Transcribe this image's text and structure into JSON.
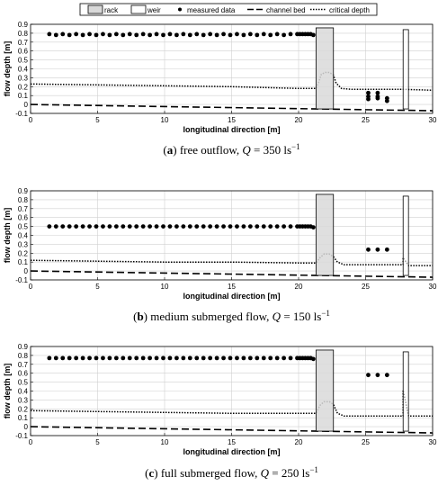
{
  "legend": {
    "rack": "rack",
    "weir": "weir",
    "measured": "measured data",
    "bed": "channel bed",
    "critical": "critical depth"
  },
  "chart_data": [
    {
      "type": "line",
      "caption": {
        "letter": "a",
        "text": "free outflow,",
        "q_symbol": "Q",
        "q_value": "350",
        "unit_base": "ls",
        "unit_exp": "−1"
      },
      "xlabel": "longitudinal direction [m]",
      "ylabel": "flow depth [m]",
      "xlim": [
        0,
        30
      ],
      "ylim": [
        -0.1,
        0.9
      ],
      "xticks": [
        0,
        5,
        10,
        15,
        20,
        25,
        30
      ],
      "yticks": [
        -0.1,
        0,
        0.1,
        0.2,
        0.3,
        0.4,
        0.5,
        0.6,
        0.7,
        0.8,
        0.9
      ],
      "grid": true,
      "rack": {
        "x0": 21.3,
        "x1": 22.6,
        "y0": -0.05,
        "y1": 0.86
      },
      "weir": {
        "x0": 27.8,
        "x1": 28.2,
        "y0": -0.05,
        "y1": 0.84
      },
      "measured": {
        "x": [
          1.4,
          1.9,
          2.4,
          2.9,
          3.4,
          3.9,
          4.4,
          4.9,
          5.4,
          5.9,
          6.4,
          6.9,
          7.4,
          7.9,
          8.4,
          8.9,
          9.4,
          9.9,
          10.4,
          10.9,
          11.4,
          11.9,
          12.4,
          12.9,
          13.4,
          13.9,
          14.4,
          14.9,
          15.4,
          15.9,
          16.4,
          16.9,
          17.4,
          17.9,
          18.4,
          18.9,
          19.4,
          19.9,
          20.1,
          20.3,
          20.5,
          20.7,
          20.9,
          21.1,
          25.2,
          25.2,
          25.2,
          25.9,
          25.9,
          25.9,
          26.6,
          26.6
        ],
        "y": [
          0.79,
          0.78,
          0.79,
          0.78,
          0.79,
          0.78,
          0.79,
          0.78,
          0.79,
          0.78,
          0.79,
          0.78,
          0.79,
          0.78,
          0.79,
          0.78,
          0.79,
          0.78,
          0.79,
          0.78,
          0.79,
          0.78,
          0.79,
          0.78,
          0.79,
          0.78,
          0.79,
          0.78,
          0.79,
          0.78,
          0.79,
          0.78,
          0.79,
          0.78,
          0.79,
          0.78,
          0.79,
          0.79,
          0.79,
          0.79,
          0.79,
          0.79,
          0.79,
          0.78,
          0.13,
          0.09,
          0.06,
          0.13,
          0.09,
          0.07,
          0.07,
          0.04
        ]
      },
      "channel_bed": {
        "x": [
          0,
          30
        ],
        "y": [
          0.0,
          -0.07
        ]
      },
      "critical_depth": {
        "x": [
          0,
          5,
          10,
          15,
          20,
          21.3,
          21.5,
          21.7,
          22.0,
          22.3,
          22.6,
          22.8,
          23.2,
          24,
          27.8,
          30
        ],
        "y": [
          0.23,
          0.22,
          0.21,
          0.2,
          0.18,
          0.18,
          0.25,
          0.34,
          0.36,
          0.36,
          0.33,
          0.24,
          0.18,
          0.17,
          0.17,
          0.16
        ]
      }
    },
    {
      "type": "line",
      "caption": {
        "letter": "b",
        "text": "medium submerged flow,",
        "q_symbol": "Q",
        "q_value": "150",
        "unit_base": "ls",
        "unit_exp": "−1"
      },
      "xlabel": "longitudinal direction [m]",
      "ylabel": "flow depth [m]",
      "xlim": [
        0,
        30
      ],
      "ylim": [
        -0.1,
        0.9
      ],
      "xticks": [
        0,
        5,
        10,
        15,
        20,
        25,
        30
      ],
      "yticks": [
        -0.1,
        0,
        0.1,
        0.2,
        0.3,
        0.4,
        0.5,
        0.6,
        0.7,
        0.8,
        0.9
      ],
      "grid": true,
      "rack": {
        "x0": 21.3,
        "x1": 22.6,
        "y0": -0.05,
        "y1": 0.86
      },
      "weir": {
        "x0": 27.8,
        "x1": 28.2,
        "y0": -0.05,
        "y1": 0.84
      },
      "measured": {
        "x": [
          1.4,
          1.9,
          2.4,
          2.9,
          3.4,
          3.9,
          4.4,
          4.9,
          5.4,
          5.9,
          6.4,
          6.9,
          7.4,
          7.9,
          8.4,
          8.9,
          9.4,
          9.9,
          10.4,
          10.9,
          11.4,
          11.9,
          12.4,
          12.9,
          13.4,
          13.9,
          14.4,
          14.9,
          15.4,
          15.9,
          16.4,
          16.9,
          17.4,
          17.9,
          18.4,
          18.9,
          19.4,
          19.9,
          20.1,
          20.3,
          20.5,
          20.7,
          20.9,
          21.1,
          25.2,
          25.9,
          26.6
        ],
        "y": [
          0.5,
          0.5,
          0.5,
          0.5,
          0.5,
          0.5,
          0.5,
          0.5,
          0.5,
          0.5,
          0.5,
          0.5,
          0.5,
          0.5,
          0.5,
          0.5,
          0.5,
          0.5,
          0.5,
          0.5,
          0.5,
          0.5,
          0.5,
          0.5,
          0.5,
          0.5,
          0.5,
          0.5,
          0.5,
          0.5,
          0.5,
          0.5,
          0.5,
          0.5,
          0.5,
          0.5,
          0.5,
          0.5,
          0.5,
          0.5,
          0.5,
          0.5,
          0.5,
          0.49,
          0.24,
          0.24,
          0.24
        ]
      },
      "channel_bed": {
        "x": [
          0,
          30
        ],
        "y": [
          0.0,
          -0.07
        ]
      },
      "critical_depth": {
        "x": [
          0,
          5,
          10,
          15,
          20,
          21.3,
          21.6,
          21.9,
          22.3,
          22.6,
          22.9,
          23.4,
          27.5,
          27.8,
          27.8,
          28.2,
          30
        ],
        "y": [
          0.12,
          0.11,
          0.1,
          0.1,
          0.09,
          0.09,
          0.15,
          0.19,
          0.19,
          0.16,
          0.1,
          0.07,
          0.07,
          0.07,
          0.15,
          0.06,
          0.06
        ]
      }
    },
    {
      "type": "line",
      "caption": {
        "letter": "c",
        "text": "full submerged flow,",
        "q_symbol": "Q",
        "q_value": "250",
        "unit_base": "ls",
        "unit_exp": "−1"
      },
      "xlabel": "longitudinal direction [m]",
      "ylabel": "flow depth [m]",
      "xlim": [
        0,
        30
      ],
      "ylim": [
        -0.1,
        0.9
      ],
      "xticks": [
        0,
        5,
        10,
        15,
        20,
        25,
        30
      ],
      "yticks": [
        -0.1,
        0,
        0.1,
        0.2,
        0.3,
        0.4,
        0.5,
        0.6,
        0.7,
        0.8,
        0.9
      ],
      "grid": true,
      "rack": {
        "x0": 21.3,
        "x1": 22.6,
        "y0": -0.05,
        "y1": 0.86
      },
      "weir": {
        "x0": 27.8,
        "x1": 28.2,
        "y0": -0.05,
        "y1": 0.84
      },
      "measured": {
        "x": [
          1.4,
          1.9,
          2.4,
          2.9,
          3.4,
          3.9,
          4.4,
          4.9,
          5.4,
          5.9,
          6.4,
          6.9,
          7.4,
          7.9,
          8.4,
          8.9,
          9.4,
          9.9,
          10.4,
          10.9,
          11.4,
          11.9,
          12.4,
          12.9,
          13.4,
          13.9,
          14.4,
          14.9,
          15.4,
          15.9,
          16.4,
          16.9,
          17.4,
          17.9,
          18.4,
          18.9,
          19.4,
          19.9,
          20.1,
          20.3,
          20.5,
          20.7,
          20.9,
          21.1,
          25.2,
          25.9,
          26.6
        ],
        "y": [
          0.77,
          0.77,
          0.77,
          0.77,
          0.77,
          0.77,
          0.77,
          0.77,
          0.77,
          0.77,
          0.77,
          0.77,
          0.77,
          0.77,
          0.77,
          0.77,
          0.77,
          0.77,
          0.77,
          0.77,
          0.77,
          0.77,
          0.77,
          0.77,
          0.77,
          0.77,
          0.77,
          0.77,
          0.77,
          0.77,
          0.77,
          0.77,
          0.77,
          0.77,
          0.77,
          0.77,
          0.77,
          0.77,
          0.77,
          0.77,
          0.77,
          0.77,
          0.77,
          0.76,
          0.58,
          0.58,
          0.58
        ]
      },
      "channel_bed": {
        "x": [
          0,
          30
        ],
        "y": [
          0.0,
          -0.07
        ]
      },
      "critical_depth": {
        "x": [
          0,
          5,
          10,
          15,
          20,
          21.3,
          21.6,
          21.9,
          22.3,
          22.6,
          22.9,
          23.4,
          27.5,
          27.8,
          27.8,
          28.2,
          30
        ],
        "y": [
          0.18,
          0.17,
          0.16,
          0.15,
          0.15,
          0.15,
          0.24,
          0.28,
          0.28,
          0.25,
          0.15,
          0.12,
          0.12,
          0.12,
          0.41,
          0.12,
          0.12
        ]
      }
    }
  ]
}
